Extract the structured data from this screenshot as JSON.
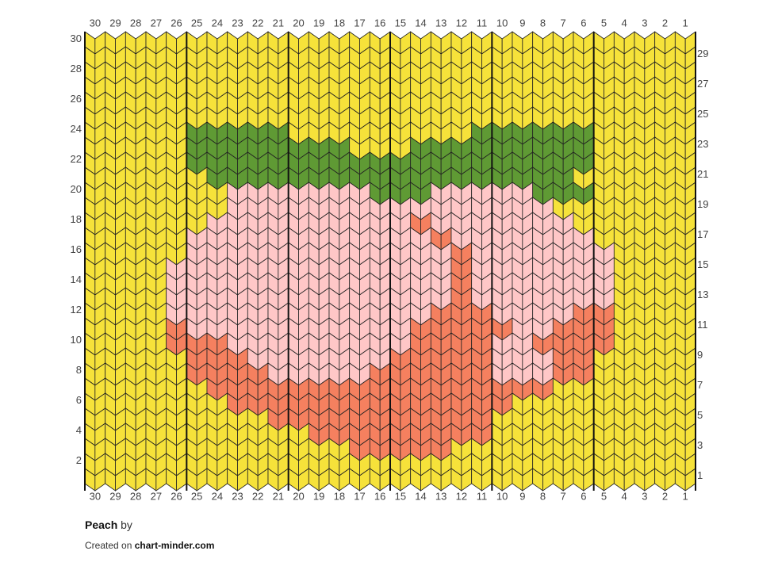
{
  "grid": {
    "columns": [
      30,
      29,
      28,
      27,
      26,
      25,
      24,
      23,
      22,
      21,
      20,
      19,
      18,
      17,
      16,
      15,
      14,
      13,
      12,
      11,
      10,
      9,
      8,
      7,
      6,
      5,
      4,
      3,
      2,
      1
    ],
    "rows_left": [
      30,
      28,
      26,
      24,
      22,
      20,
      18,
      16,
      14,
      12,
      10,
      8,
      6,
      4,
      2
    ],
    "rows_right": [
      29,
      27,
      25,
      23,
      21,
      19,
      17,
      15,
      13,
      11,
      9,
      7,
      5,
      3,
      1
    ],
    "palette": {
      "Y": "#f6e23a",
      "G": "#5f9a34",
      "P": "#ffc7c7",
      "O": "#f5805f"
    },
    "stitches": [
      "YYYYYYYYYYYYYYYYYYYYYYYYYYYYYY",
      "YYYYYYYYYYYYYYYYYYYYYYYYYYYYYY",
      "YYYYYYYYYYYYYYYYYYYYYYYYYYYYYY",
      "YYYYYYYYYYYYYYYYYYYYYYYYYYYYYY",
      "YYYYYYYYYYYYYYYYYYYYYYYYYYYYYY",
      "YYYYYYYYYYYYYYYYYYYYYYYYYYYYYY",
      "YYYYYGGGGGYYYYYYYYYGGGGGGYYYYY",
      "YYYYYGGGGGGGGYYYGGGGGGGGGYYYYY",
      "YYYYYGGGGGGGGGGGGGGGGGGGGYYYYY",
      "YYYYYYGGGGGGGGGGGGGGGGGGYYYYYY",
      "YYYYYYYPPPPPPPGGGPPPPPGGGYYYYY",
      "YYYYYYYPPPPPPPPPPPPPPPPYYYYYYY",
      "YYYYYYPPPPPPPPPPOPPPPPPPYYYYYY",
      "YYYYYPPPPPPPPPPPPOPPPPPPPYYYYY",
      "YYYYYPPPPPPPPPPPPPOPPPPPPPYYYY",
      "YYYYPPPPPPPPPPPPPPOPPPPPPPYYYY",
      "YYYYPPPPPPPPPPPPPPOPPPPPPPYYYY",
      "YYYYPPPPPPPPPPPPPPOPPPPPPPYYYY",
      "YYYYPPPPPPPPPPPPPOOOPPPPOOYYYY",
      "YYYYOPPPPPPPPPPPOOOOOPPOOOYYYY",
      "YYYYOOOPPPPPPPPPOOOOPPOOOOYYYY",
      "YYYYYOOOPPPPPPPOOOOOPPPOOYYYYY",
      "YYYYYOOOOPPPPPOOOOOOPPPOOYYYYY",
      "YYYYYYOOOOOOOOOOOOOOOOOYYYYYYY",
      "YYYYYYYOOOOOOOOOOOOOOYYYYYYYYY",
      "YYYYYYYYYOOOOOOOOOOOYYYYYYYYYY",
      "YYYYYYYYYYYOOOOOOOOOYYYYYYYYYY",
      "YYYYYYYYYYYYYOOOOOYYYYYYYYYYYY",
      "YYYYYYYYYYYYYYYYYYYYYYYYYYYYYY",
      "YYYYYYYYYYYYYYYYYYYYYYYYYYYYYY"
    ]
  },
  "footer": {
    "title": "Peach",
    "by": "by",
    "created_on": "Created on",
    "site": "chart-minder.com"
  }
}
